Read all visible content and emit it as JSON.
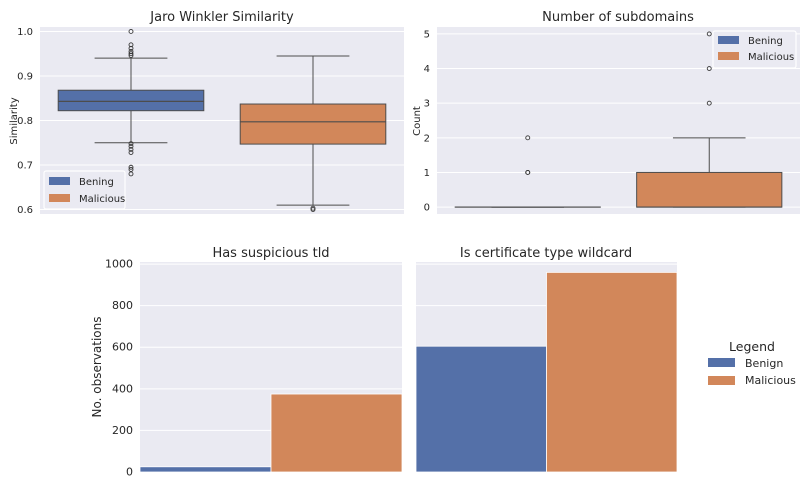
{
  "colors": {
    "benign": "#5470a8",
    "malicious": "#d2875a",
    "panel": "#eaeaf2",
    "grid": "#ffffff"
  },
  "figure_legend": {
    "title": "Legend",
    "entries": [
      "Benign",
      "Malicious"
    ]
  },
  "chart_data": [
    {
      "type": "box",
      "title": "Jaro Winkler Similarity",
      "xlabel": "",
      "ylabel": "Similarity",
      "ylim": [
        0.59,
        1.01
      ],
      "yticks": [
        "0.6",
        "0.7",
        "0.8",
        "0.9",
        "1.0"
      ],
      "legend": {
        "placement": "lower-left",
        "entries": [
          "Bening",
          "Malicious"
        ]
      },
      "series": [
        {
          "name": "Bening",
          "whisker_low": 0.75,
          "q1": 0.822,
          "median": 0.843,
          "q3": 0.868,
          "whisker_high": 0.94,
          "outliers": [
            1.0,
            0.97,
            0.962,
            0.955,
            0.95,
            0.946,
            0.748,
            0.742,
            0.735,
            0.728,
            0.695,
            0.69,
            0.68
          ]
        },
        {
          "name": "Malicious",
          "whisker_low": 0.61,
          "q1": 0.747,
          "median": 0.797,
          "q3": 0.837,
          "whisker_high": 0.945,
          "outliers": [
            0.603,
            0.6
          ]
        }
      ]
    },
    {
      "type": "box",
      "title": "Number of subdomains",
      "xlabel": "",
      "ylabel": "Count",
      "ylim": [
        -0.2,
        5.2
      ],
      "yticks": [
        "0",
        "1",
        "2",
        "3",
        "4",
        "5"
      ],
      "legend": {
        "placement": "upper-right",
        "entries": [
          "Bening",
          "Malicious"
        ]
      },
      "series": [
        {
          "name": "Bening",
          "whisker_low": 0,
          "q1": 0,
          "median": 0,
          "q3": 0,
          "whisker_high": 0,
          "outliers": [
            1,
            1,
            2
          ]
        },
        {
          "name": "Malicious",
          "whisker_low": 0,
          "q1": 0,
          "median": 0,
          "q3": 1,
          "whisker_high": 2,
          "outliers": [
            3,
            4,
            5
          ]
        }
      ]
    },
    {
      "type": "bar",
      "title": "Has suspicious tld",
      "xlabel": "",
      "ylabel": "No. observations",
      "ylim": [
        0,
        1010
      ],
      "yticks": [
        "0",
        "200",
        "400",
        "600",
        "800",
        "1000"
      ],
      "series": [
        {
          "name": "Benign",
          "values": [
            25
          ]
        },
        {
          "name": "Malicious",
          "values": [
            375
          ]
        }
      ]
    },
    {
      "type": "bar",
      "title": "Is certificate type wildcard",
      "xlabel": "",
      "ylabel": "",
      "ylim": [
        0,
        1010
      ],
      "series": [
        {
          "name": "Benign",
          "values": [
            605
          ]
        },
        {
          "name": "Malicious",
          "values": [
            960
          ]
        }
      ]
    }
  ]
}
